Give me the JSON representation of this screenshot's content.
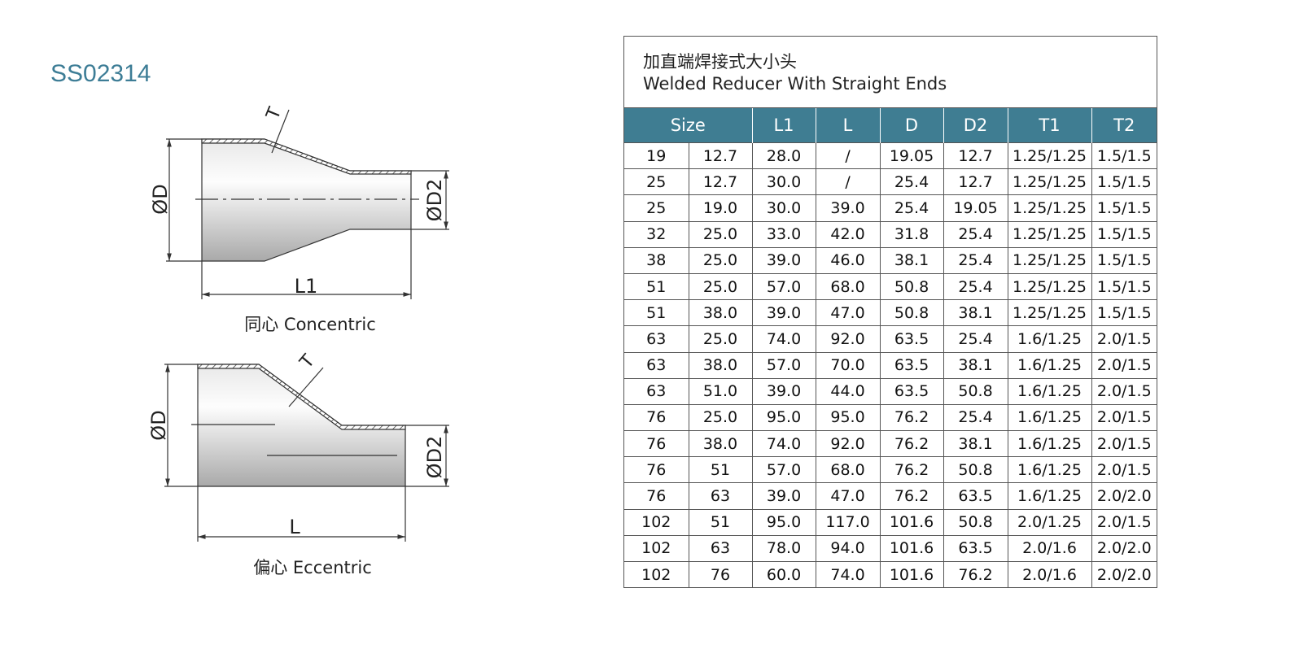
{
  "header": {
    "code": "SS02314"
  },
  "drawings": [
    {
      "d_label": "ØD",
      "d2_label": "ØD2",
      "length_label": "L1",
      "thickness_label": "T",
      "caption": "同心 Concentric"
    },
    {
      "d_label": "ØD",
      "d2_label": "ØD2",
      "length_label": "L",
      "thickness_label": "T",
      "caption": "偏心 Eccentric"
    }
  ],
  "table": {
    "title": [
      "加直端焊接式大小头",
      "Welded Reducer With Straight Ends"
    ],
    "columns": [
      "Size",
      "L1",
      "L",
      "D",
      "D2",
      "T1",
      "T2"
    ],
    "rows": [
      [
        "19",
        "12.7",
        "28.0",
        "/",
        "19.05",
        "12.7",
        "1.25/1.25",
        "1.5/1.5"
      ],
      [
        "25",
        "12.7",
        "30.0",
        "/",
        "25.4",
        "12.7",
        "1.25/1.25",
        "1.5/1.5"
      ],
      [
        "25",
        "19.0",
        "30.0",
        "39.0",
        "25.4",
        "19.05",
        "1.25/1.25",
        "1.5/1.5"
      ],
      [
        "32",
        "25.0",
        "33.0",
        "42.0",
        "31.8",
        "25.4",
        "1.25/1.25",
        "1.5/1.5"
      ],
      [
        "38",
        "25.0",
        "39.0",
        "46.0",
        "38.1",
        "25.4",
        "1.25/1.25",
        "1.5/1.5"
      ],
      [
        "51",
        "25.0",
        "57.0",
        "68.0",
        "50.8",
        "25.4",
        "1.25/1.25",
        "1.5/1.5"
      ],
      [
        "51",
        "38.0",
        "39.0",
        "47.0",
        "50.8",
        "38.1",
        "1.25/1.25",
        "1.5/1.5"
      ],
      [
        "63",
        "25.0",
        "74.0",
        "92.0",
        "63.5",
        "25.4",
        "1.6/1.25",
        "2.0/1.5"
      ],
      [
        "63",
        "38.0",
        "57.0",
        "70.0",
        "63.5",
        "38.1",
        "1.6/1.25",
        "2.0/1.5"
      ],
      [
        "63",
        "51.0",
        "39.0",
        "44.0",
        "63.5",
        "50.8",
        "1.6/1.25",
        "2.0/1.5"
      ],
      [
        "76",
        "25.0",
        "95.0",
        "95.0",
        "76.2",
        "25.4",
        "1.6/1.25",
        "2.0/1.5"
      ],
      [
        "76",
        "38.0",
        "74.0",
        "92.0",
        "76.2",
        "38.1",
        "1.6/1.25",
        "2.0/1.5"
      ],
      [
        "76",
        "51",
        "57.0",
        "68.0",
        "76.2",
        "50.8",
        "1.6/1.25",
        "2.0/1.5"
      ],
      [
        "76",
        "63",
        "39.0",
        "47.0",
        "76.2",
        "63.5",
        "1.6/1.25",
        "2.0/2.0"
      ],
      [
        "102",
        "51",
        "95.0",
        "117.0",
        "101.6",
        "50.8",
        "2.0/1.25",
        "2.0/1.5"
      ],
      [
        "102",
        "63",
        "78.0",
        "94.0",
        "101.6",
        "63.5",
        "2.0/1.6",
        "2.0/2.0"
      ],
      [
        "102",
        "76",
        "60.0",
        "74.0",
        "101.6",
        "76.2",
        "2.0/1.6",
        "2.0/2.0"
      ]
    ]
  }
}
